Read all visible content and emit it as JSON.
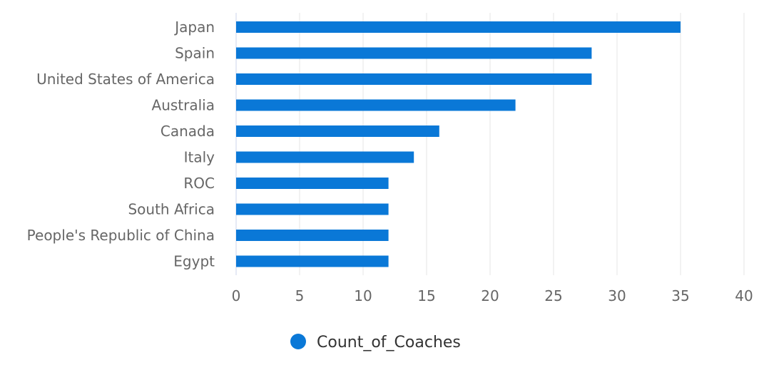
{
  "chart_data": {
    "type": "bar",
    "orientation": "horizontal",
    "categories": [
      "Japan",
      "Spain",
      "United States of America",
      "Australia",
      "Canada",
      "Italy",
      "ROC",
      "South Africa",
      "People's Republic of China",
      "Egypt"
    ],
    "series": [
      {
        "name": "Count_of_Coaches",
        "color": "#0a78d7",
        "values": [
          35,
          28,
          28,
          22,
          16,
          14,
          12,
          12,
          12,
          12
        ]
      }
    ],
    "xlim": [
      0,
      40
    ],
    "xticks": [
      "0",
      "5",
      "10",
      "15",
      "20",
      "25",
      "30",
      "35",
      "40"
    ],
    "grid": true,
    "legend": "bottom-center"
  }
}
